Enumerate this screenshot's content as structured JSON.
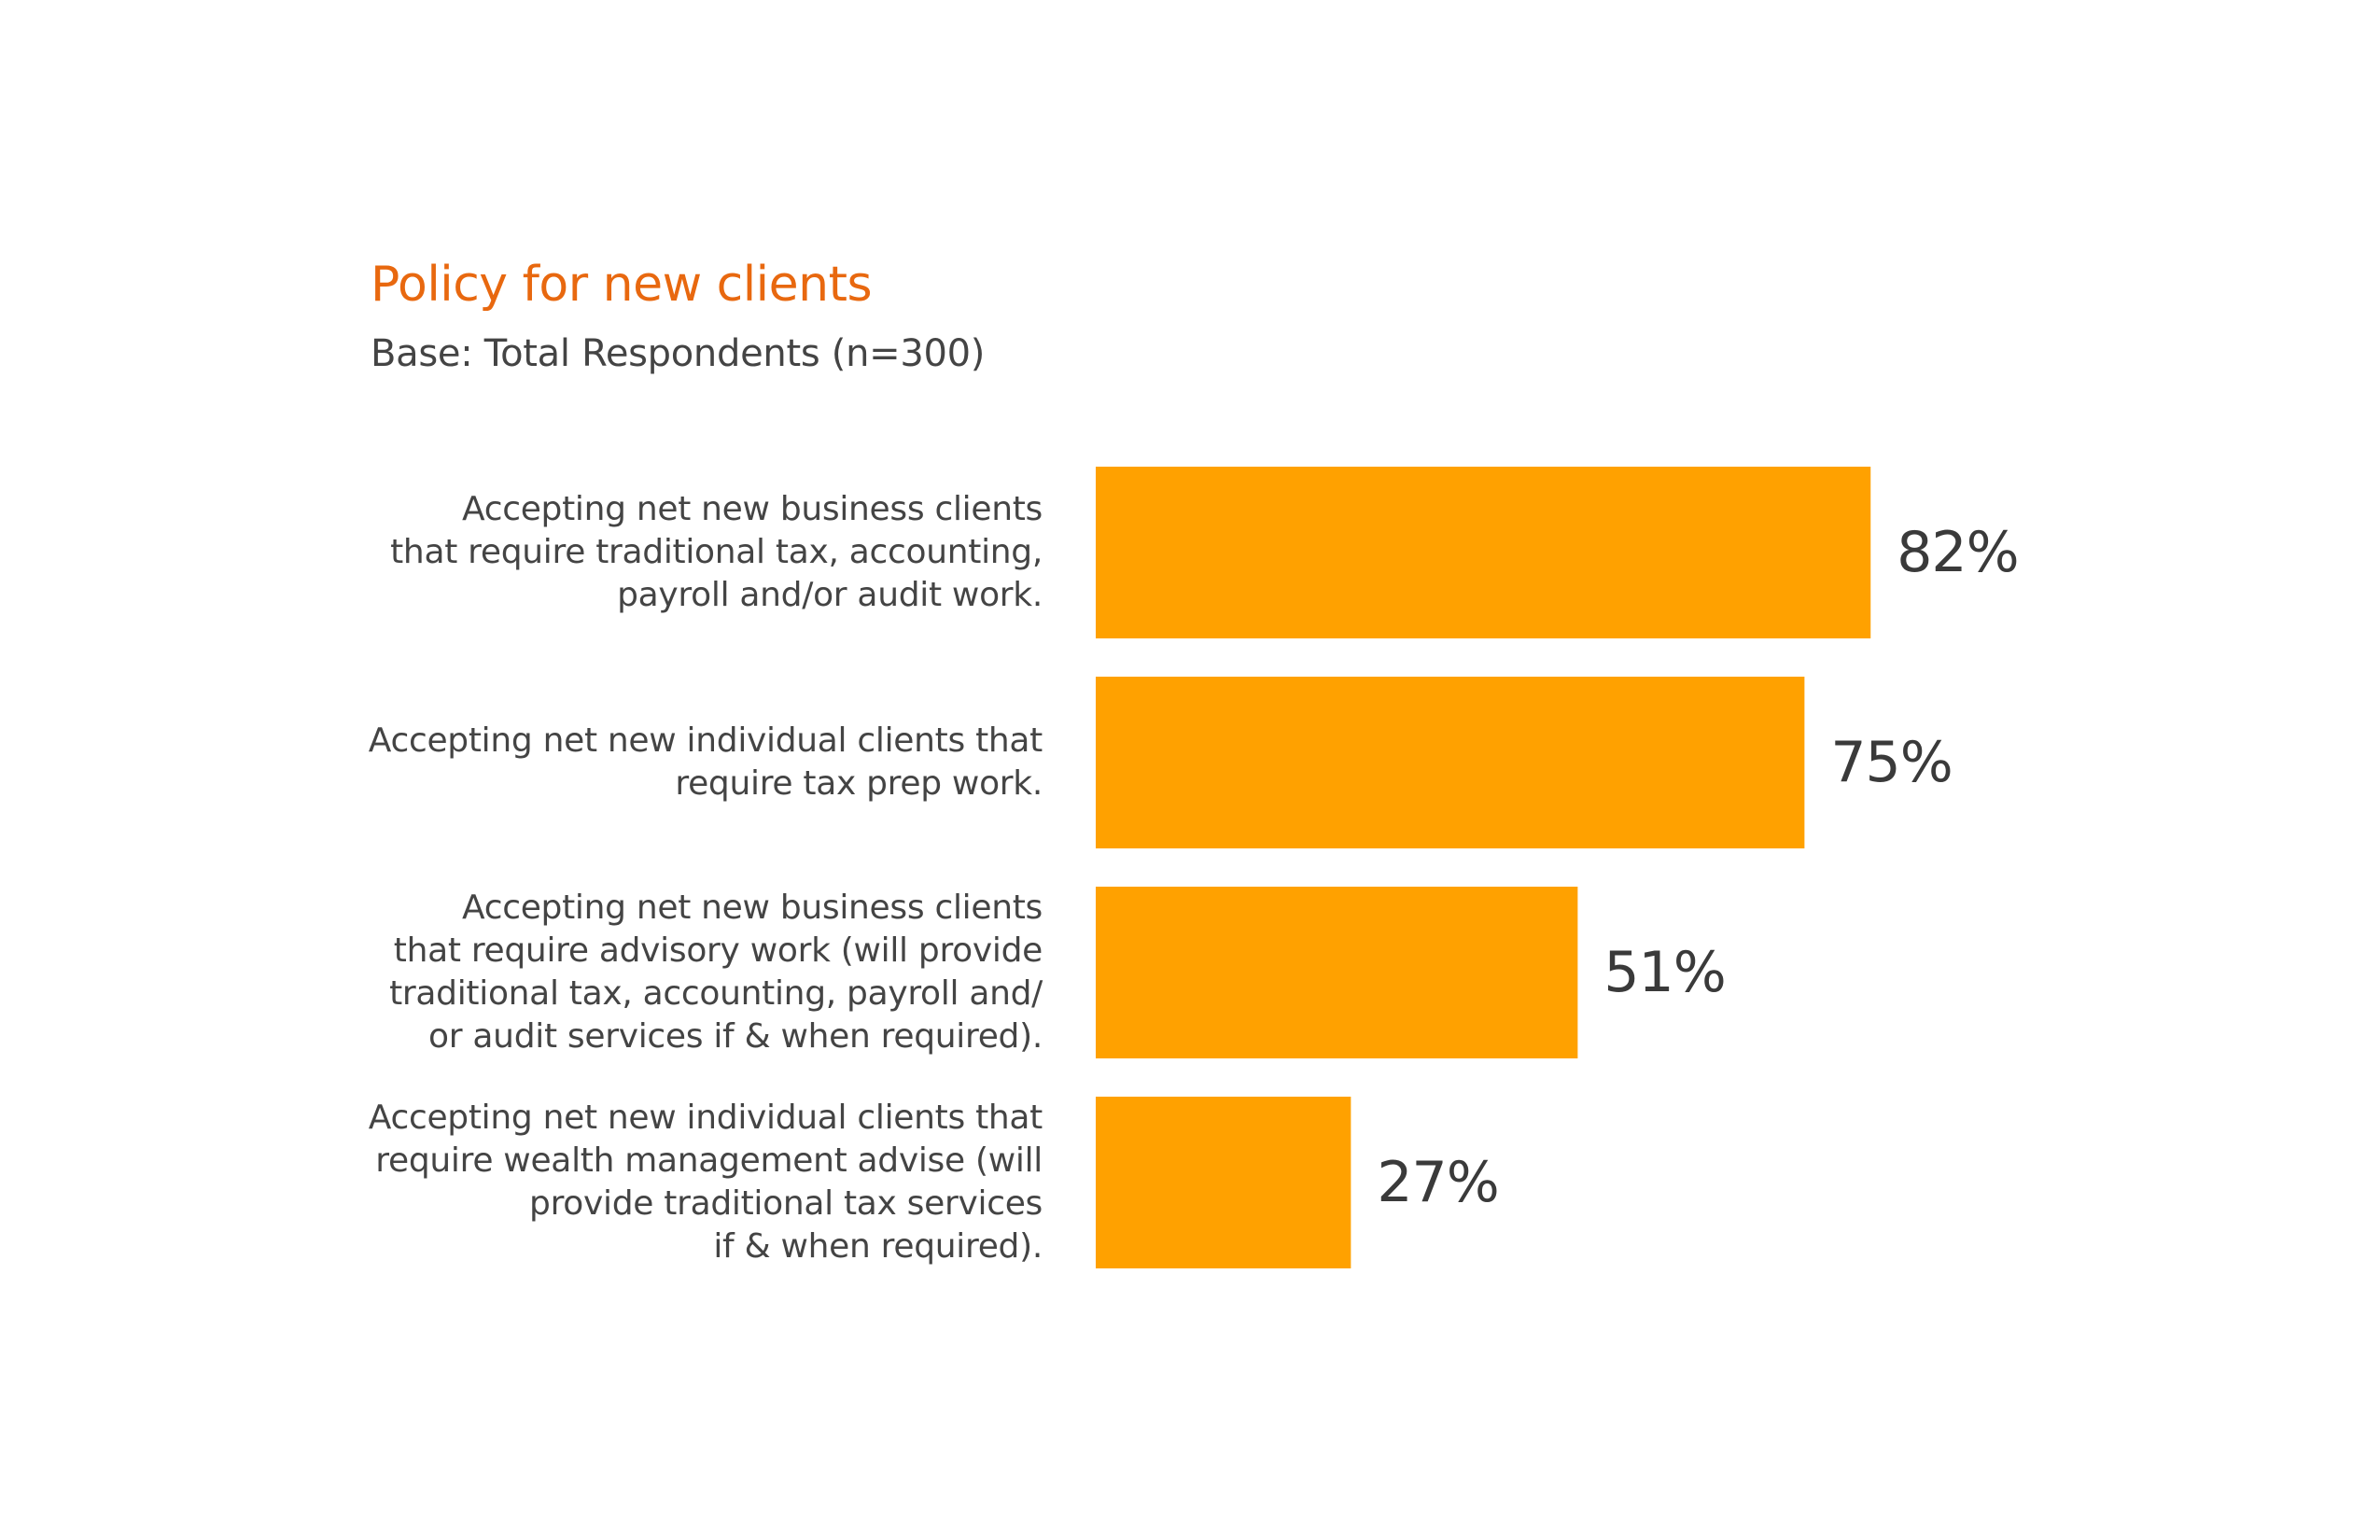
{
  "chart_data": {
    "type": "bar",
    "orientation": "horizontal",
    "title": "Policy for new clients",
    "subtitle": "Base: Total Respondents (n=300)",
    "categories": [
      [
        "Accepting net new business clients",
        "that require traditional tax, accounting,",
        "payroll and/or audit work."
      ],
      [
        "Accepting net new individual clients that",
        "require tax prep work."
      ],
      [
        "Accepting net new business clients",
        "that require advisory work (will provide",
        "traditional tax, accounting, payroll and/",
        "or audit services if & when required)."
      ],
      [
        "Accepting net new individual clients that",
        "require wealth management advise (will",
        "provide traditional tax services",
        "if & when required)."
      ]
    ],
    "values": [
      82,
      75,
      51,
      27
    ],
    "value_labels": [
      "82%",
      "75%",
      "51%",
      "27%"
    ],
    "xlim": [
      0,
      100
    ],
    "grid": false,
    "bar_color": "#ffa100",
    "title_color": "#e8680f"
  }
}
